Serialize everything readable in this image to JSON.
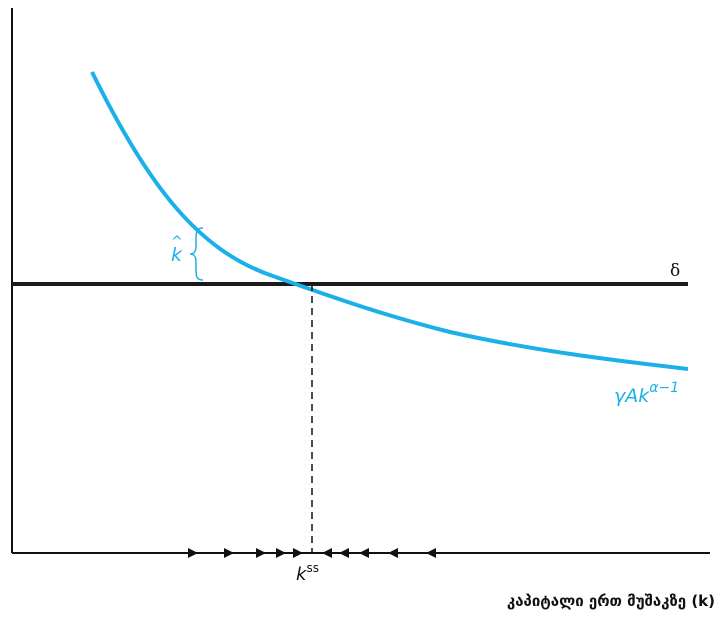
{
  "diagram": {
    "curve_label": "γAk",
    "curve_label_sup": "α−1",
    "delta_label": "δ",
    "khat_label": "k",
    "khat_accent": "^",
    "kss_label": "k",
    "kss_sup": "ss",
    "x_axis_label": "კაპიტალი ერთ მუშაკზე (k)",
    "colors": {
      "curve": "#1BB0E8",
      "delta_line": "#1a1a1a",
      "axes": "#111111"
    }
  }
}
